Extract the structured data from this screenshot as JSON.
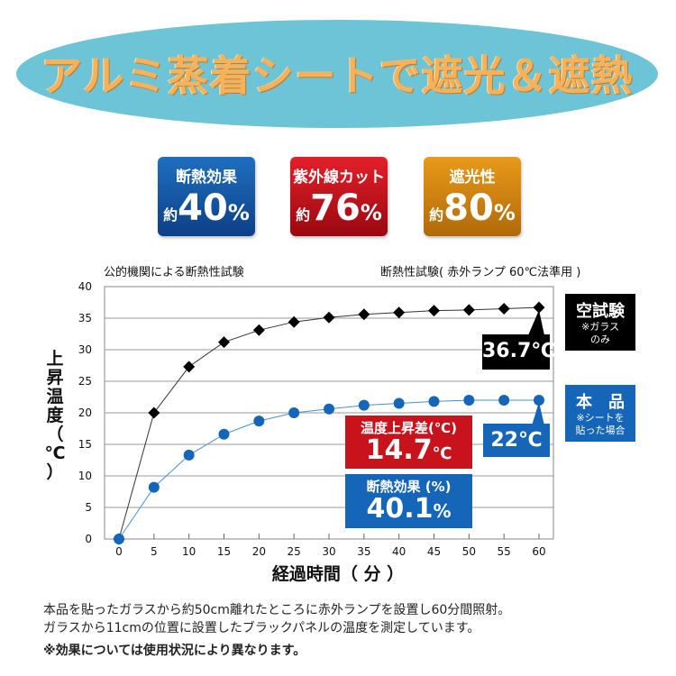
{
  "banner": {
    "title": "アルミ蒸着シートで遮光＆遮熱",
    "bg_color": "#6cc4d6"
  },
  "badges": [
    {
      "title": "断熱効果",
      "prefix": "約",
      "value": "40",
      "unit": "%",
      "color": "#1a5fb0"
    },
    {
      "title": "紫外線カット",
      "prefix": "約",
      "value": "76",
      "unit": "%",
      "color": "#c8121c"
    },
    {
      "title": "遮光性",
      "prefix": "約",
      "value": "80",
      "unit": "%",
      "color": "#d98a10"
    }
  ],
  "subtitles": {
    "left": "公的機関による断熱性試験",
    "right": "断熱性試験( 赤外ランプ 60℃法準用 )"
  },
  "chart_data": {
    "type": "line",
    "title": "断熱性試験( 赤外ランプ 60℃法準用 )",
    "xlabel": "経過時間（ 分 ）",
    "ylabel": "上昇温度（℃）",
    "ylabel_chars": [
      "上",
      "昇",
      "温",
      "度",
      "（",
      "℃",
      "）"
    ],
    "x": [
      0,
      5,
      10,
      15,
      20,
      25,
      30,
      35,
      40,
      45,
      50,
      55,
      60
    ],
    "xticks": [
      "0",
      "5",
      "10",
      "15",
      "20",
      "25",
      "30",
      "35",
      "40",
      "45",
      "50",
      "55",
      "60"
    ],
    "yticks": [
      "0",
      "5",
      "10",
      "15",
      "20",
      "25",
      "30",
      "35",
      "40"
    ],
    "xlim": [
      0,
      60
    ],
    "ylim": [
      0,
      40
    ],
    "grid": true,
    "series": [
      {
        "name": "空試験",
        "marker": "diamond",
        "color": "#000000",
        "values": [
          0,
          20.0,
          27.3,
          31.2,
          33.1,
          34.4,
          35.1,
          35.6,
          35.9,
          36.2,
          36.3,
          36.5,
          36.7
        ]
      },
      {
        "name": "本品",
        "marker": "circle",
        "color": "#1565b8",
        "values": [
          0,
          8.2,
          13.3,
          16.6,
          18.7,
          20.0,
          20.6,
          21.2,
          21.5,
          21.8,
          22.0,
          22.0,
          22.0
        ]
      }
    ],
    "annotations": {
      "blank_end": "36.7℃",
      "product_end": "22℃",
      "diff_label": "温度上昇差(℃)",
      "diff_value": "14.7",
      "diff_unit": "℃",
      "effect_label": "断熱効果 (%)",
      "effect_value": "40.1",
      "effect_unit": "%"
    },
    "legend": [
      {
        "title": "空試験",
        "note1": "※ガラス",
        "note2": "のみ",
        "color": "#000000"
      },
      {
        "title": "本　品",
        "note1": "※シートを",
        "note2": "貼った場合",
        "color": "#1565b8"
      }
    ],
    "legend_placement": "right"
  },
  "notes": {
    "line1": "本品を貼ったガラスから約50cm離れたところに赤外ランプを設置し60分間照射。",
    "line2": "ガラスから11cmの位置に設置したブラックパネルの温度を測定しています。",
    "line3": "※効果については使用状況により異なります。"
  }
}
